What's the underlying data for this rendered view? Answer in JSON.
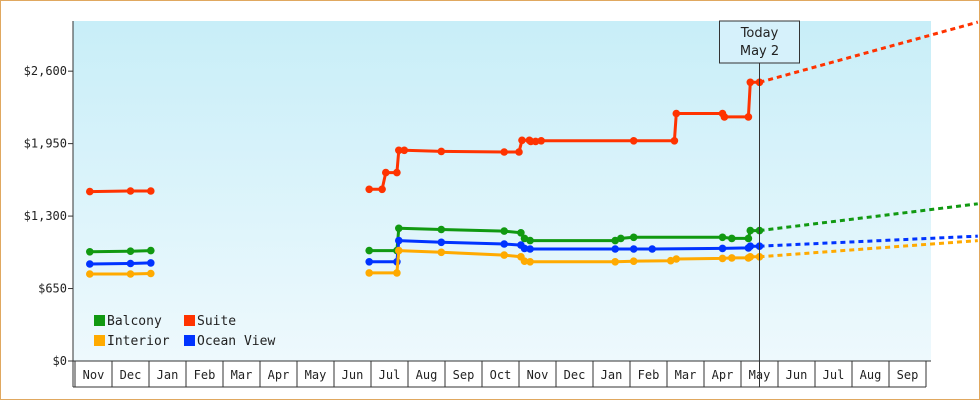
{
  "chart_data": {
    "type": "line",
    "title": "",
    "xlabel": "",
    "ylabel": "",
    "ylim": [
      0,
      3050
    ],
    "y_ticks": [
      "$0",
      "$650",
      "$1,300",
      "$1,950",
      "$2,600"
    ],
    "y_tick_values": [
      0,
      650,
      1300,
      1950,
      2600
    ],
    "months": [
      "Nov",
      "Dec",
      "Jan",
      "Feb",
      "Mar",
      "Apr",
      "May",
      "Jun",
      "Jul",
      "Aug",
      "Sep",
      "Oct",
      "Nov",
      "Dec",
      "Jan",
      "Feb",
      "Mar",
      "Apr",
      "May",
      "Jun",
      "Jul",
      "Aug",
      "Sep"
    ],
    "grid": false,
    "legend_position": "bottom-left",
    "today": {
      "label": "Today",
      "date": "May 2",
      "x": 18.0
    },
    "series": [
      {
        "name": "Suite",
        "color": "#ff3300",
        "segments": [
          [
            [
              -0.1,
              1520
            ],
            [
              1.0,
              1525
            ],
            [
              1.55,
              1525
            ]
          ],
          [
            [
              7.45,
              1540
            ],
            [
              7.8,
              1540
            ],
            [
              7.9,
              1690
            ],
            [
              8.2,
              1690
            ],
            [
              8.25,
              1890
            ],
            [
              8.4,
              1890
            ],
            [
              9.4,
              1880
            ],
            [
              11.1,
              1875
            ],
            [
              11.5,
              1875
            ],
            [
              11.58,
              1980
            ],
            [
              11.78,
              1980
            ],
            [
              11.82,
              1970
            ],
            [
              11.95,
              1970
            ],
            [
              12.1,
              1975
            ],
            [
              14.6,
              1975
            ],
            [
              15.7,
              1975
            ],
            [
              15.75,
              2220
            ],
            [
              17.0,
              2220
            ],
            [
              17.05,
              2190
            ],
            [
              17.7,
              2190
            ],
            [
              17.75,
              2500
            ],
            [
              18.0,
              2500
            ]
          ]
        ],
        "projection": [
          [
            18.0,
            2500
          ],
          [
            23.9,
            3040
          ]
        ]
      },
      {
        "name": "Balcony",
        "color": "#119911",
        "segments": [
          [
            [
              -0.1,
              980
            ],
            [
              1.0,
              985
            ],
            [
              1.55,
              990
            ]
          ],
          [
            [
              7.45,
              990
            ],
            [
              8.2,
              990
            ],
            [
              8.25,
              1190
            ],
            [
              9.4,
              1180
            ],
            [
              11.1,
              1165
            ],
            [
              11.55,
              1150
            ],
            [
              11.65,
              1100
            ],
            [
              11.8,
              1080
            ],
            [
              14.1,
              1080
            ],
            [
              14.25,
              1100
            ],
            [
              14.6,
              1110
            ],
            [
              17.0,
              1110
            ],
            [
              17.25,
              1100
            ],
            [
              17.7,
              1100
            ],
            [
              17.75,
              1170
            ],
            [
              18.0,
              1170
            ]
          ]
        ],
        "projection": [
          [
            18.0,
            1170
          ],
          [
            23.9,
            1410
          ]
        ]
      },
      {
        "name": "Ocean View",
        "color": "#0033ff",
        "segments": [
          [
            [
              -0.1,
              870
            ],
            [
              1.0,
              875
            ],
            [
              1.55,
              880
            ]
          ],
          [
            [
              7.45,
              890
            ],
            [
              8.2,
              890
            ],
            [
              8.25,
              1080
            ],
            [
              9.4,
              1065
            ],
            [
              11.1,
              1050
            ],
            [
              11.55,
              1040
            ],
            [
              11.65,
              1010
            ],
            [
              11.8,
              1005
            ],
            [
              14.1,
              1005
            ],
            [
              14.6,
              1005
            ],
            [
              15.1,
              1005
            ],
            [
              17.0,
              1010
            ],
            [
              17.7,
              1015
            ],
            [
              17.75,
              1030
            ],
            [
              18.0,
              1030
            ]
          ]
        ],
        "projection": [
          [
            18.0,
            1030
          ],
          [
            23.9,
            1120
          ]
        ]
      },
      {
        "name": "Interior",
        "color": "#ffaa00",
        "segments": [
          [
            [
              -0.1,
              780
            ],
            [
              1.0,
              780
            ],
            [
              1.55,
              785
            ]
          ],
          [
            [
              7.45,
              790
            ],
            [
              8.2,
              790
            ],
            [
              8.25,
              990
            ],
            [
              9.4,
              975
            ],
            [
              11.1,
              950
            ],
            [
              11.55,
              935
            ],
            [
              11.65,
              895
            ],
            [
              11.8,
              890
            ],
            [
              14.1,
              890
            ],
            [
              14.6,
              895
            ],
            [
              15.6,
              900
            ],
            [
              15.75,
              915
            ],
            [
              17.0,
              920
            ],
            [
              17.25,
              925
            ],
            [
              17.7,
              925
            ],
            [
              17.75,
              935
            ],
            [
              18.0,
              935
            ]
          ]
        ],
        "projection": [
          [
            18.0,
            935
          ],
          [
            23.9,
            1080
          ]
        ]
      }
    ],
    "legend": [
      {
        "label": "Balcony",
        "color": "#119911"
      },
      {
        "label": "Suite",
        "color": "#ff3300"
      },
      {
        "label": "Interior",
        "color": "#ffaa00"
      },
      {
        "label": "Ocean View",
        "color": "#0033ff"
      }
    ]
  }
}
